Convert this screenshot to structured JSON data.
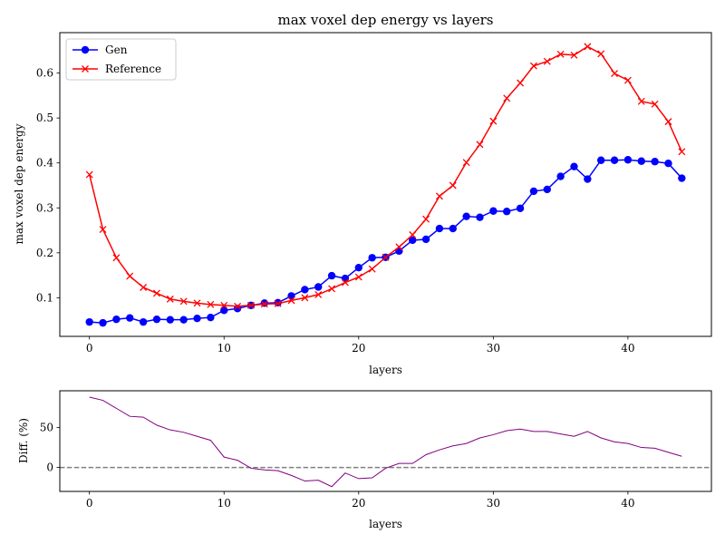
{
  "chart_data": [
    {
      "type": "line",
      "title": "max voxel dep energy vs layers",
      "xlabel": "layers",
      "ylabel": "max voxel dep energy",
      "xlim": [
        -2.2,
        46.2
      ],
      "ylim": [
        0.014,
        0.69
      ],
      "xticks": [
        0,
        10,
        20,
        30,
        40
      ],
      "yticks": [
        0.1,
        0.2,
        0.3,
        0.4,
        0.5,
        0.6
      ],
      "legend_position": "top-left",
      "x": [
        0,
        1,
        2,
        3,
        4,
        5,
        6,
        7,
        8,
        9,
        10,
        11,
        12,
        13,
        14,
        15,
        16,
        17,
        18,
        19,
        20,
        21,
        22,
        23,
        24,
        25,
        26,
        27,
        28,
        29,
        30,
        31,
        32,
        33,
        34,
        35,
        36,
        37,
        38,
        39,
        40,
        41,
        42,
        43,
        44
      ],
      "series": [
        {
          "name": "Gen",
          "color": "#0000ff",
          "marker": "circle",
          "values": [
            0.046,
            0.044,
            0.052,
            0.055,
            0.046,
            0.052,
            0.051,
            0.051,
            0.054,
            0.056,
            0.072,
            0.076,
            0.083,
            0.088,
            0.089,
            0.104,
            0.118,
            0.124,
            0.149,
            0.143,
            0.167,
            0.189,
            0.19,
            0.204,
            0.228,
            0.23,
            0.254,
            0.254,
            0.281,
            0.279,
            0.293,
            0.292,
            0.299,
            0.337,
            0.341,
            0.37,
            0.392,
            0.364,
            0.406,
            0.406,
            0.407,
            0.404,
            0.403,
            0.399,
            0.366
          ]
        },
        {
          "name": "Reference",
          "color": "#ff0000",
          "marker": "x",
          "values": [
            0.374,
            0.252,
            0.189,
            0.148,
            0.123,
            0.11,
            0.097,
            0.092,
            0.088,
            0.085,
            0.083,
            0.081,
            0.083,
            0.086,
            0.087,
            0.094,
            0.1,
            0.107,
            0.12,
            0.134,
            0.146,
            0.164,
            0.19,
            0.213,
            0.24,
            0.275,
            0.326,
            0.35,
            0.401,
            0.441,
            0.493,
            0.544,
            0.578,
            0.616,
            0.626,
            0.642,
            0.64,
            0.659,
            0.643,
            0.599,
            0.584,
            0.537,
            0.531,
            0.492,
            0.425
          ]
        }
      ]
    },
    {
      "type": "line",
      "title": "",
      "xlabel": "layers",
      "ylabel": "Diff. (%)",
      "xlim": [
        -2.2,
        46.2
      ],
      "ylim": [
        -30,
        96
      ],
      "xticks": [
        0,
        10,
        20,
        30,
        40
      ],
      "yticks": [
        0,
        50
      ],
      "reference_line": {
        "y": 0,
        "style": "dashed",
        "color": "#808080"
      },
      "x": [
        0,
        1,
        2,
        3,
        4,
        5,
        6,
        7,
        8,
        9,
        10,
        11,
        12,
        13,
        14,
        15,
        16,
        17,
        18,
        19,
        20,
        21,
        22,
        23,
        24,
        25,
        26,
        27,
        28,
        29,
        30,
        31,
        32,
        33,
        34,
        35,
        36,
        37,
        38,
        39,
        40,
        41,
        42,
        43,
        44
      ],
      "series": [
        {
          "color": "#800080",
          "values": [
            88,
            84,
            74,
            64,
            63,
            53,
            47,
            44,
            39,
            34,
            13,
            9,
            -1,
            -3,
            -4,
            -10,
            -17,
            -16,
            -24,
            -7,
            -14,
            -13,
            -1,
            5,
            5,
            16,
            22,
            27,
            30,
            37,
            41,
            46,
            48,
            45,
            45,
            42,
            39,
            45,
            37,
            32,
            30,
            25,
            24,
            19,
            14
          ]
        }
      ]
    }
  ]
}
